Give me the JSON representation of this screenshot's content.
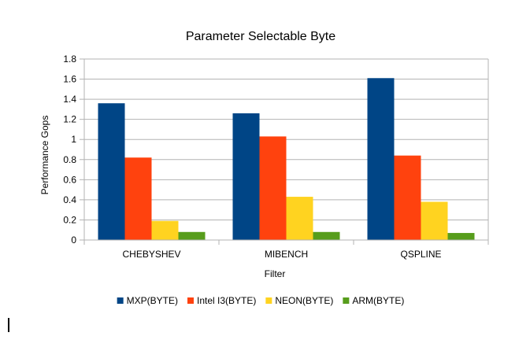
{
  "chart_data": {
    "type": "bar",
    "title": "Parameter Selectable Byte",
    "xlabel": "Filter",
    "ylabel": "Performance Gops",
    "ylim": [
      0,
      1.8
    ],
    "yticks": [
      "0",
      "0.2",
      "0.4",
      "0.6",
      "0.8",
      "1",
      "1.2",
      "1.4",
      "1.6",
      "1.8"
    ],
    "grid": true,
    "legend_position": "bottom",
    "categories": [
      "CHEBYSHEV",
      "MIBENCH",
      "QSPLINE"
    ],
    "series": [
      {
        "name": "MXP(BYTE)",
        "color": "#004586",
        "values": [
          1.36,
          1.26,
          1.61
        ]
      },
      {
        "name": "Intel I3(BYTE)",
        "color": "#ff420e",
        "values": [
          0.82,
          1.03,
          0.84
        ]
      },
      {
        "name": "NEON(BYTE)",
        "color": "#ffd320",
        "values": [
          0.19,
          0.43,
          0.38
        ]
      },
      {
        "name": "ARM(BYTE)",
        "color": "#579d1c",
        "values": [
          0.08,
          0.08,
          0.07
        ]
      }
    ]
  }
}
